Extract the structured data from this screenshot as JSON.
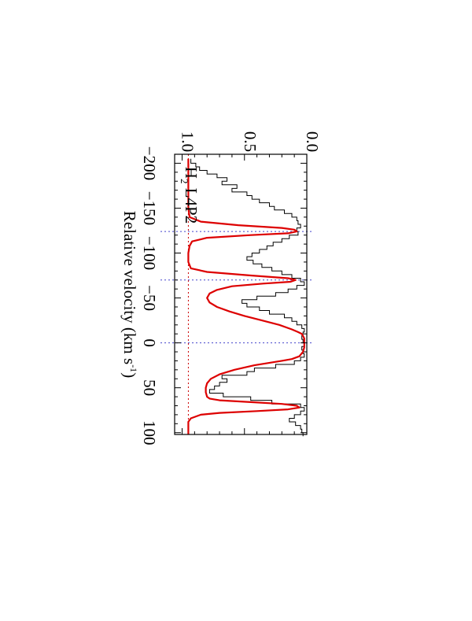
{
  "chart_data": {
    "type": "line",
    "xlabel": "Relative velocity (km s",
    "xlabel_unit_superscript": "-1",
    "xlabel_close": ")",
    "ylabel": "",
    "xlim": [
      -210,
      102
    ],
    "ylim": [
      0,
      1.06
    ],
    "x_ticks": [
      -200,
      -150,
      -100,
      -50,
      0,
      50,
      100
    ],
    "x_tick_labels": [
      "−200",
      "−150",
      "−100",
      "−50",
      "0",
      "50",
      "100"
    ],
    "y_ticks": [
      0.0,
      0.5,
      1.0
    ],
    "y_tick_labels": [
      "0.0",
      "0.5",
      "1.0"
    ],
    "annotation": {
      "main": "H",
      "subscript": "2",
      "rest": " L4P2"
    },
    "rotation_deg": 90,
    "reference_lines": {
      "continuum": 0.95,
      "zero": 0.0,
      "components_x": [
        -124,
        -70,
        0
      ]
    },
    "series": [
      {
        "color": "#000000",
        "style": "histogram",
        "x": [
          -205,
          -200,
          -196,
          -192,
          -188,
          -184,
          -180,
          -176,
          -172,
          -168,
          -164,
          -160,
          -156,
          -152,
          -148,
          -144,
          -140,
          -136,
          -132,
          -128,
          -124,
          -120,
          -116,
          -112,
          -108,
          -104,
          -100,
          -96,
          -92,
          -88,
          -84,
          -80,
          -76,
          -72,
          -68,
          -64,
          -60,
          -56,
          -52,
          -48,
          -44,
          -40,
          -36,
          -32,
          -28,
          -24,
          -20,
          -16,
          -12,
          -8,
          -4,
          0,
          4,
          8,
          12,
          16,
          20,
          24,
          28,
          32,
          36,
          40,
          44,
          48,
          52,
          56,
          60,
          64,
          68,
          72,
          76,
          80,
          84,
          88,
          92,
          96,
          100
        ],
        "y": [
          0.93,
          0.89,
          0.86,
          0.8,
          0.72,
          0.64,
          0.68,
          0.56,
          0.6,
          0.48,
          0.44,
          0.38,
          0.3,
          0.26,
          0.18,
          0.12,
          0.08,
          0.07,
          0.05,
          0.08,
          0.07,
          0.14,
          0.2,
          0.27,
          0.32,
          0.38,
          0.44,
          0.48,
          0.43,
          0.36,
          0.28,
          0.2,
          0.12,
          0.05,
          0.02,
          0.08,
          0.15,
          0.25,
          0.4,
          0.52,
          0.48,
          0.38,
          0.3,
          0.18,
          0.12,
          0.08,
          0.04,
          0.02,
          0.03,
          0.04,
          0.03,
          0.02,
          0.04,
          0.03,
          0.02,
          0.05,
          0.1,
          0.25,
          0.42,
          0.48,
          0.68,
          0.64,
          0.7,
          0.74,
          0.78,
          0.67,
          0.45,
          0.28,
          0.05,
          0.02,
          0.05,
          0.1,
          0.14,
          0.09,
          0.05,
          0.04,
          0.03
        ]
      },
      {
        "color": "#dd0000",
        "style": "line",
        "x": [
          -205,
          -150,
          -140,
          -135,
          -131,
          -128,
          -126,
          -124,
          -122,
          -120,
          -117,
          -113,
          -108,
          -100,
          -90,
          -83,
          -79,
          -75,
          -72,
          -70,
          -68,
          -66,
          -63,
          -59,
          -55,
          -50,
          -45,
          -40,
          -35,
          -30,
          -25,
          -20,
          -15,
          -12,
          -10,
          -5,
          0,
          5,
          10,
          15,
          18,
          20,
          25,
          30,
          35,
          40,
          45,
          50,
          55,
          60,
          62,
          64,
          66,
          68,
          70,
          72,
          74,
          76,
          78,
          80,
          84,
          88,
          92,
          98,
          102
        ],
        "y": [
          0.95,
          0.95,
          0.94,
          0.85,
          0.55,
          0.2,
          0.1,
          0.08,
          0.15,
          0.45,
          0.8,
          0.92,
          0.94,
          0.95,
          0.95,
          0.93,
          0.8,
          0.45,
          0.15,
          0.09,
          0.13,
          0.35,
          0.6,
          0.72,
          0.78,
          0.8,
          0.78,
          0.72,
          0.62,
          0.5,
          0.36,
          0.22,
          0.12,
          0.07,
          0.04,
          0.02,
          0.02,
          0.02,
          0.03,
          0.06,
          0.12,
          0.2,
          0.42,
          0.58,
          0.7,
          0.77,
          0.8,
          0.81,
          0.81,
          0.8,
          0.78,
          0.7,
          0.45,
          0.2,
          0.08,
          0.06,
          0.15,
          0.4,
          0.7,
          0.85,
          0.93,
          0.95,
          0.95,
          0.95,
          0.95
        ]
      }
    ]
  }
}
